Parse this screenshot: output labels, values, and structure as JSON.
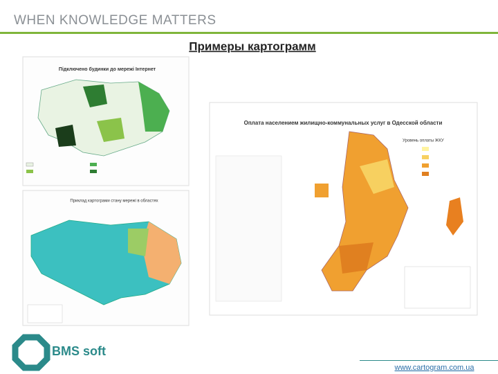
{
  "header": {
    "slogan": "WHEN KNOWLEDGE MATTERS",
    "title": "Примеры картограмм"
  },
  "maps": [
    {
      "title": "Підключено будинки до мережі Інтернет"
    },
    {
      "title": "Приклад картограми стану мережі в областях"
    },
    {
      "title": "Оплата населением жилищно-коммунальных услуг в Одесской области",
      "legend_title": "Уровень оплаты ЖКУ"
    }
  ],
  "footer": {
    "brand": "BMS soft",
    "url": "www.cartogram.com.ua"
  }
}
